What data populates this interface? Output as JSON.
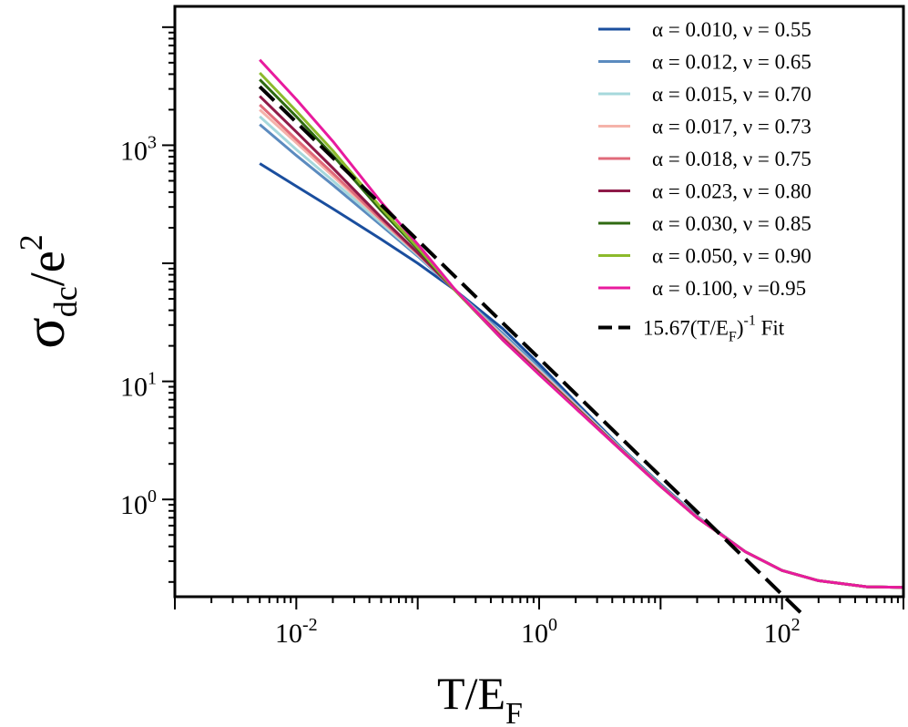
{
  "chart_data": {
    "type": "line",
    "scale": {
      "x": "log",
      "y": "log"
    },
    "xlabel": {
      "main": "T/E",
      "sub": "F"
    },
    "ylabel": {
      "main": "σ",
      "sub": "dc",
      "mid": "/e",
      "sup": "2"
    },
    "xlim": [
      0.001,
      1000
    ],
    "ylim": [
      0.15,
      15000
    ],
    "x_ticks": [
      {
        "value": 0.01,
        "base": "10",
        "exp": "-2"
      },
      {
        "value": 1,
        "base": "10",
        "exp": "0"
      },
      {
        "value": 100,
        "base": "10",
        "exp": "2"
      }
    ],
    "y_ticks": [
      {
        "value": 1000,
        "base": "10",
        "exp": "3"
      },
      {
        "value": 10,
        "base": "10",
        "exp": "1"
      },
      {
        "value": 1,
        "base": "10",
        "exp": "0"
      }
    ],
    "x": [
      0.005,
      0.01,
      0.02,
      0.05,
      0.1,
      0.2,
      0.5,
      1,
      2,
      5,
      10,
      20,
      50,
      100,
      200,
      500,
      1000
    ],
    "series": [
      {
        "name": "α = 0.010,  ν = 0.55",
        "color": "#1a4e9e",
        "values": [
          700,
          450,
          290,
          160,
          100,
          60,
          28,
          14,
          6.7,
          2.6,
          1.35,
          0.72,
          0.36,
          0.25,
          0.205,
          0.182,
          0.18
        ]
      },
      {
        "name": "α = 0.012,  ν = 0.65",
        "color": "#5b8bbf",
        "values": [
          1500,
          820,
          460,
          210,
          115,
          60,
          25.5,
          13,
          6.4,
          2.55,
          1.33,
          0.71,
          0.36,
          0.25,
          0.205,
          0.182,
          0.18
        ]
      },
      {
        "name": "α = 0.015,  ν = 0.70",
        "color": "#a6d8dc",
        "values": [
          1750,
          920,
          500,
          220,
          118,
          60,
          24.5,
          12.5,
          6.3,
          2.55,
          1.32,
          0.71,
          0.36,
          0.25,
          0.205,
          0.182,
          0.18
        ]
      },
      {
        "name": "α = 0.017,  ν = 0.73",
        "color": "#f5b3aa",
        "values": [
          2000,
          1050,
          550,
          230,
          120,
          60,
          24,
          12.2,
          6.2,
          2.5,
          1.31,
          0.71,
          0.36,
          0.25,
          0.205,
          0.182,
          0.18
        ]
      },
      {
        "name": "α = 0.018,  ν = 0.75",
        "color": "#e06a7a",
        "values": [
          2200,
          1120,
          580,
          235,
          121,
          60,
          23.5,
          12,
          6.1,
          2.5,
          1.3,
          0.7,
          0.36,
          0.25,
          0.205,
          0.182,
          0.18
        ]
      },
      {
        "name": "α = 0.023,  ν = 0.80",
        "color": "#8e1a48",
        "values": [
          2600,
          1300,
          640,
          245,
          123,
          60,
          23,
          11.8,
          6.05,
          2.5,
          1.3,
          0.7,
          0.36,
          0.25,
          0.205,
          0.182,
          0.18
        ]
      },
      {
        "name": "α = 0.030,  ν = 0.85",
        "color": "#2f6a12",
        "values": [
          3600,
          1750,
          820,
          280,
          132,
          60,
          22.5,
          11.6,
          6.0,
          2.48,
          1.3,
          0.7,
          0.36,
          0.25,
          0.205,
          0.182,
          0.18
        ]
      },
      {
        "name": "α = 0.050,  ν = 0.90",
        "color": "#8cba2b",
        "values": [
          4100,
          1950,
          900,
          295,
          136,
          60,
          22.5,
          11.5,
          5.95,
          2.48,
          1.29,
          0.7,
          0.36,
          0.25,
          0.205,
          0.182,
          0.18
        ]
      },
      {
        "name": "α = 0.100,  ν =0.95",
        "color": "#e81a9e",
        "values": [
          5300,
          2450,
          1080,
          330,
          145,
          61,
          22.5,
          11.4,
          5.9,
          2.47,
          1.29,
          0.7,
          0.36,
          0.25,
          0.205,
          0.182,
          0.18
        ]
      }
    ],
    "fit": {
      "label": {
        "pre": "15.67(T/E",
        "sub": "F",
        "post": ")",
        "sup": "-1",
        "end": " Fit"
      },
      "coefficient": 15.67,
      "exponent": -1,
      "x_range": [
        0.005,
        145
      ],
      "color": "#000000",
      "style": "dashed"
    },
    "legend": {
      "position": "top-right"
    }
  }
}
